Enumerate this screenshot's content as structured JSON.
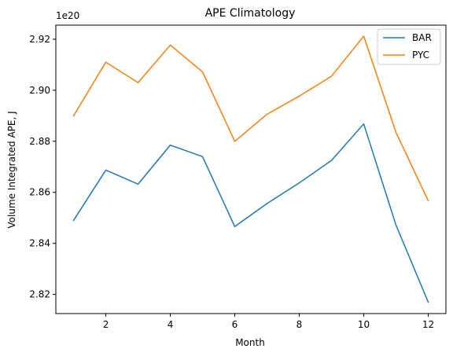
{
  "chart_data": {
    "type": "line",
    "title": "APE Climatology",
    "xlabel": "Month",
    "ylabel": "Volume Integrated APE, J",
    "offset_text": "1e20",
    "x": [
      1,
      2,
      3,
      4,
      5,
      6,
      7,
      8,
      9,
      10,
      11,
      12
    ],
    "xlim": [
      0.45,
      12.55
    ],
    "ylim": [
      2.8125,
      2.9255
    ],
    "xticks": [
      2,
      4,
      6,
      8,
      10,
      12
    ],
    "xtick_labels": [
      "2",
      "4",
      "6",
      "8",
      "10",
      "12"
    ],
    "yticks": [
      2.82,
      2.84,
      2.86,
      2.88,
      2.9,
      2.92
    ],
    "ytick_labels": [
      "2.82",
      "2.84",
      "2.86",
      "2.88",
      "2.90",
      "2.92"
    ],
    "grid": false,
    "legend": "upper-right",
    "series": [
      {
        "name": "BAR",
        "color": "#1f77b4",
        "values": [
          2.849,
          2.8687,
          2.8632,
          2.8785,
          2.874,
          2.8466,
          2.8556,
          2.8637,
          2.8725,
          2.8868,
          2.8472,
          2.817
        ]
      },
      {
        "name": "PYC",
        "color": "#ff7f0e",
        "values": [
          2.89,
          2.911,
          2.903,
          2.9177,
          2.9072,
          2.88,
          2.8906,
          2.8977,
          2.9055,
          2.9212,
          2.8835,
          2.8567
        ]
      }
    ]
  }
}
